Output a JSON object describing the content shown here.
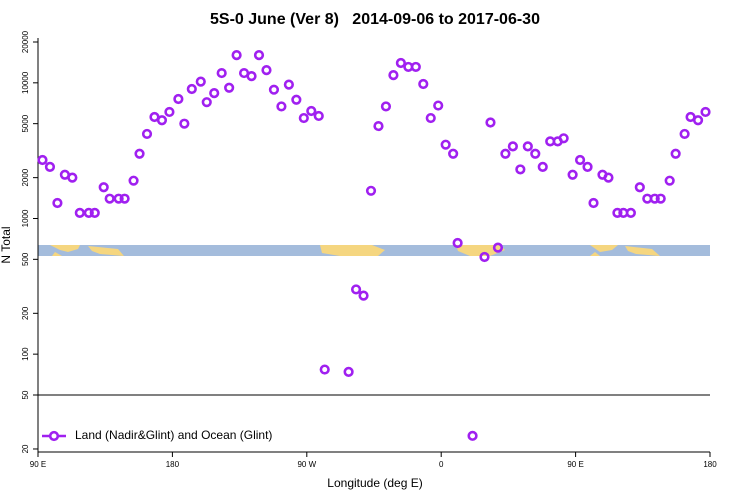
{
  "chart_data": {
    "type": "scatter",
    "title": "5S-0 June (Ver 8)   2014-09-06 to 2017-06-30",
    "xlabel": "Longitude (deg E)",
    "ylabel": "N Total",
    "x": [
      93,
      98,
      103,
      108,
      113,
      118,
      124,
      128,
      134,
      138,
      144,
      148,
      154,
      158,
      163,
      168,
      173,
      178,
      184,
      188,
      193,
      199,
      203,
      208,
      213,
      218,
      223,
      228,
      233,
      238,
      243,
      248,
      253,
      258,
      263,
      268,
      273,
      278,
      282,
      298,
      303,
      308,
      313,
      318,
      323,
      328,
      333,
      338,
      343,
      348,
      353,
      358,
      363,
      368,
      371,
      381,
      389,
      393,
      398,
      403,
      408,
      413,
      418,
      423,
      428,
      433,
      438,
      442,
      448,
      453,
      458,
      462,
      468,
      472,
      478,
      482,
      487,
      493,
      498,
      503,
      507,
      513,
      517,
      523,
      527,
      532,
      537
    ],
    "series": [
      {
        "name": "Land (Nadir&Glint) and Ocean (Glint)",
        "color": "#a020f0",
        "values": [
          2700,
          2400,
          1300,
          2100,
          2000,
          1100,
          1100,
          1100,
          1700,
          1400,
          1400,
          1400,
          1900,
          3000,
          4200,
          5600,
          5300,
          6100,
          7600,
          5000,
          9000,
          10200,
          7200,
          8400,
          11800,
          9200,
          16000,
          11800,
          11200,
          16000,
          12400,
          8900,
          6700,
          9700,
          7500,
          5500,
          6200,
          5700,
          77,
          74,
          300,
          270,
          1600,
          4800,
          6700,
          11400,
          14000,
          13100,
          13100,
          9800,
          5500,
          6800,
          3500,
          3000,
          660,
          25,
          520,
          5100,
          610,
          3000,
          3400,
          2300,
          3400,
          3000,
          2400,
          3700,
          3700,
          3900,
          2100,
          2700,
          2400,
          1300,
          2100,
          2000,
          1100,
          1100,
          1100,
          1700,
          1400,
          1400,
          1400,
          1900,
          3000,
          4200,
          5600,
          5300,
          6100
        ]
      }
    ],
    "xlim": [
      90,
      540
    ],
    "xticks": [
      {
        "value": 90,
        "label": "90 E"
      },
      {
        "value": 180,
        "label": "180"
      },
      {
        "value": 270,
        "label": "90 W"
      },
      {
        "value": 360,
        "label": "0"
      },
      {
        "value": 450,
        "label": "90 E"
      },
      {
        "value": 540,
        "label": "180"
      }
    ],
    "ylim": [
      19,
      21400
    ],
    "log_y": true,
    "yticks": [
      20,
      50,
      100,
      200,
      500,
      1000,
      2000,
      5000,
      10000,
      20000
    ],
    "reference_line": 50,
    "legend": "bottom-left"
  }
}
